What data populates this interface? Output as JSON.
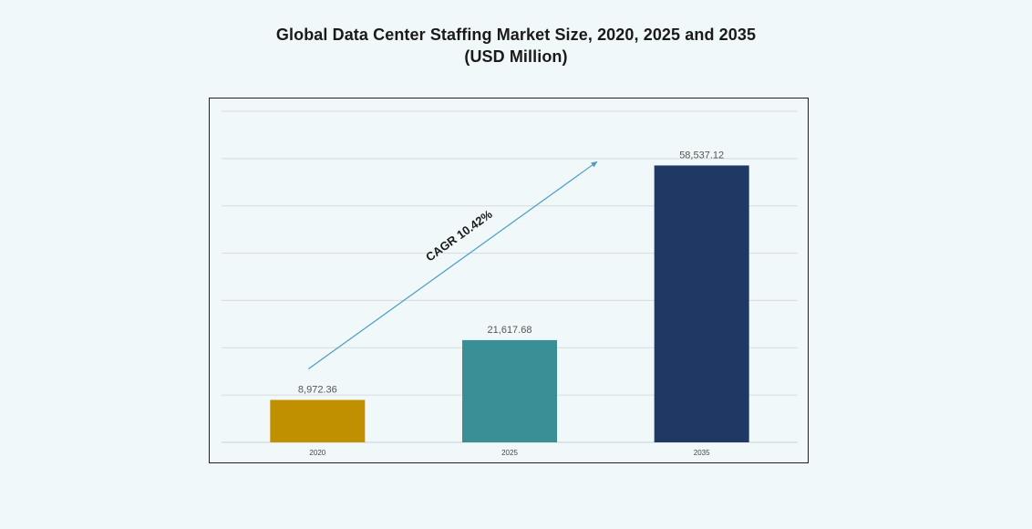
{
  "chart_data": {
    "type": "bar",
    "title": "Global Data Center Staffing Market Size, 2020, 2025 and 2035",
    "subtitle": "(USD Million)",
    "categories": [
      "2020",
      "2025",
      "2035"
    ],
    "values": [
      8972.36,
      21617.68,
      58537.12
    ],
    "value_labels": [
      "8,972.36",
      "21,617.68",
      "58,537.12"
    ],
    "colors": [
      "#c09000",
      "#3a8f97",
      "#1f3864"
    ],
    "ylim": [
      0,
      70000
    ],
    "grid": true,
    "legend": "none",
    "annotation": {
      "text": "CAGR 10.42%",
      "arrow_color": "#4a9cc8"
    }
  }
}
